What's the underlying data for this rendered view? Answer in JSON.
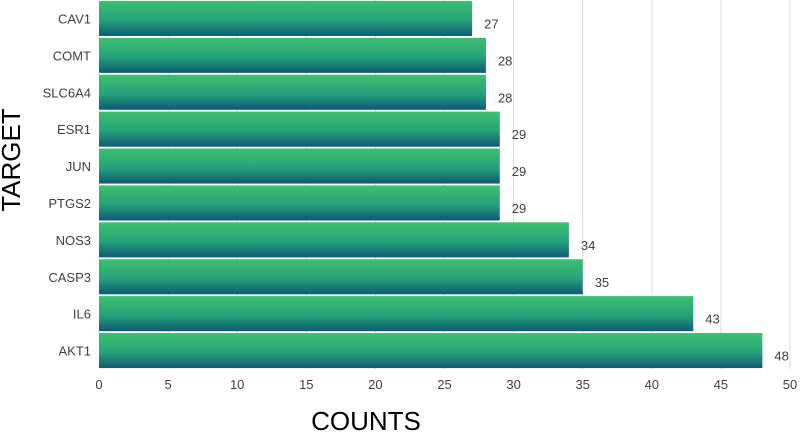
{
  "chart_data": {
    "type": "bar",
    "orientation": "horizontal",
    "categories": [
      "AKT1",
      "IL6",
      "CASP3",
      "NOS3",
      "PTGS2",
      "JUN",
      "ESR1",
      "SLC6A4",
      "COMT",
      "CAV1"
    ],
    "values": [
      48,
      43,
      35,
      34,
      29,
      29,
      29,
      28,
      28,
      27
    ],
    "xlabel": "COUNTS",
    "ylabel": "TARGET",
    "xlim": [
      0,
      50
    ],
    "xticks": [
      0,
      5,
      10,
      15,
      20,
      25,
      30,
      35,
      40,
      45,
      50
    ],
    "grid": "vertical",
    "legend": "none",
    "data_labels": true,
    "colors": {
      "bar_light": "#3cc06f",
      "bar_dark": "#0d5a74",
      "grid": "#d9d9d9",
      "text": "#404040"
    }
  }
}
